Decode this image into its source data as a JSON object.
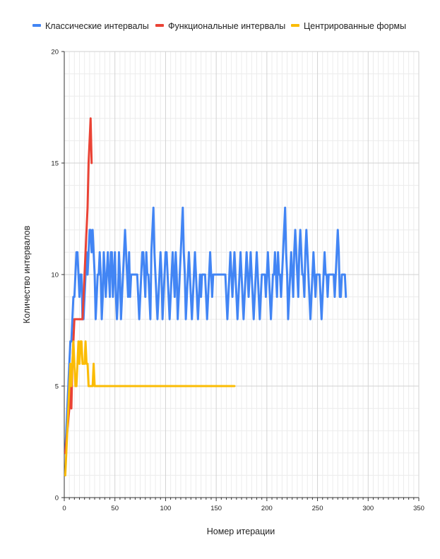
{
  "chart_data": {
    "type": "line",
    "title": "",
    "xlabel": "Номер итерации",
    "ylabel": "Количество интервалов",
    "xlim": [
      0,
      350
    ],
    "ylim": [
      0,
      20
    ],
    "x_ticks": [
      "0",
      "50",
      "100",
      "150",
      "200",
      "250",
      "300",
      "350"
    ],
    "y_ticks": [
      "0",
      "5",
      "10",
      "15",
      "20"
    ],
    "x_minor_step": 5,
    "y_minor_step": 1,
    "grid": true,
    "legend_position": "top",
    "series": [
      {
        "name": "Классические интервалы",
        "color": "#4285F4",
        "x_start": 1,
        "x_step": 1,
        "values": [
          2,
          3,
          4,
          5,
          6,
          7,
          7,
          8,
          9,
          9,
          10,
          11,
          11,
          10,
          9,
          10,
          10,
          8,
          8,
          9,
          10,
          11,
          10,
          11,
          12,
          12,
          11,
          12,
          11,
          10,
          8,
          9,
          10,
          10,
          11,
          10,
          8,
          9,
          11,
          10,
          9,
          10,
          11,
          10,
          9,
          11,
          11,
          9,
          10,
          11,
          9,
          8,
          9,
          11,
          10,
          8,
          9,
          10,
          11,
          12,
          11,
          10,
          9,
          11,
          9,
          10,
          10,
          10,
          10,
          10,
          10,
          10,
          9,
          8,
          9,
          10,
          11,
          11,
          10,
          9,
          11,
          10,
          10,
          9,
          8,
          11,
          12,
          13,
          11,
          10,
          9,
          8,
          9,
          10,
          11,
          10,
          8,
          9,
          10,
          11,
          11,
          10,
          9,
          8,
          9,
          10,
          11,
          10,
          9,
          11,
          10,
          8,
          9,
          10,
          11,
          12,
          13,
          11,
          10,
          8,
          9,
          10,
          11,
          10,
          9,
          8,
          9,
          10,
          11,
          10,
          9,
          8,
          9,
          10,
          9,
          10,
          10,
          10,
          10,
          9,
          8,
          9,
          10,
          11,
          10,
          9,
          10,
          10,
          10,
          10,
          10,
          10,
          10,
          10,
          10,
          10,
          10,
          10,
          10,
          9,
          8,
          9,
          10,
          11,
          10,
          9,
          10,
          11,
          10,
          9,
          8,
          9,
          10,
          11,
          10,
          9,
          8,
          9,
          10,
          11,
          10,
          9,
          10,
          11,
          10,
          9,
          8,
          9,
          10,
          11,
          10,
          9,
          8,
          9,
          10,
          10,
          10,
          10,
          9,
          10,
          11,
          10,
          9,
          8,
          9,
          10,
          10,
          11,
          10,
          9,
          11,
          10,
          10,
          9,
          10,
          11,
          12,
          13,
          11,
          10,
          8,
          9,
          10,
          11,
          10,
          9,
          11,
          12,
          11,
          10,
          9,
          11,
          12,
          11,
          10,
          10,
          9,
          11,
          12,
          11,
          10,
          9,
          8,
          9,
          10,
          11,
          10,
          9,
          10,
          10,
          10,
          10,
          9,
          8,
          9,
          10,
          11,
          10,
          10,
          9,
          10,
          10,
          10,
          10,
          10,
          10,
          9,
          10,
          11,
          12,
          11,
          9,
          9,
          10,
          10,
          10,
          10,
          9
        ]
      },
      {
        "name": "Функциональные интервалы",
        "color": "#EA4335",
        "points": [
          [
            1,
            2
          ],
          [
            3,
            3
          ],
          [
            5,
            4
          ],
          [
            6,
            5
          ],
          [
            7,
            4
          ],
          [
            8,
            6
          ],
          [
            9,
            7
          ],
          [
            10,
            8
          ],
          [
            11,
            8
          ],
          [
            12,
            8
          ],
          [
            13,
            8
          ],
          [
            14,
            8
          ],
          [
            15,
            8
          ],
          [
            16,
            8
          ],
          [
            17,
            8
          ],
          [
            18,
            8
          ],
          [
            19,
            9
          ],
          [
            20,
            10
          ],
          [
            21,
            11
          ],
          [
            22,
            12
          ],
          [
            23,
            13
          ],
          [
            24,
            15
          ],
          [
            25,
            16
          ],
          [
            26,
            17
          ],
          [
            27,
            15
          ]
        ]
      },
      {
        "name": "Центрированные формы",
        "color": "#FBBC04",
        "points": [
          [
            1,
            1
          ],
          [
            2,
            2
          ],
          [
            3,
            3
          ],
          [
            4,
            4
          ],
          [
            5,
            5
          ],
          [
            6,
            6
          ],
          [
            7,
            5
          ],
          [
            8,
            6
          ],
          [
            9,
            7
          ],
          [
            10,
            6
          ],
          [
            11,
            5
          ],
          [
            12,
            5
          ],
          [
            13,
            6
          ],
          [
            14,
            7
          ],
          [
            15,
            6
          ],
          [
            16,
            7
          ],
          [
            17,
            7
          ],
          [
            18,
            6
          ],
          [
            19,
            6
          ],
          [
            20,
            6
          ],
          [
            21,
            7
          ],
          [
            22,
            6
          ],
          [
            23,
            6
          ],
          [
            24,
            5
          ],
          [
            25,
            5
          ],
          [
            26,
            5
          ],
          [
            27,
            5
          ],
          [
            28,
            5
          ],
          [
            29,
            6
          ],
          [
            30,
            5
          ],
          [
            31,
            5
          ],
          [
            50,
            5
          ],
          [
            100,
            5
          ],
          [
            150,
            5
          ],
          [
            167,
            5
          ],
          [
            168,
            5
          ]
        ]
      }
    ]
  }
}
